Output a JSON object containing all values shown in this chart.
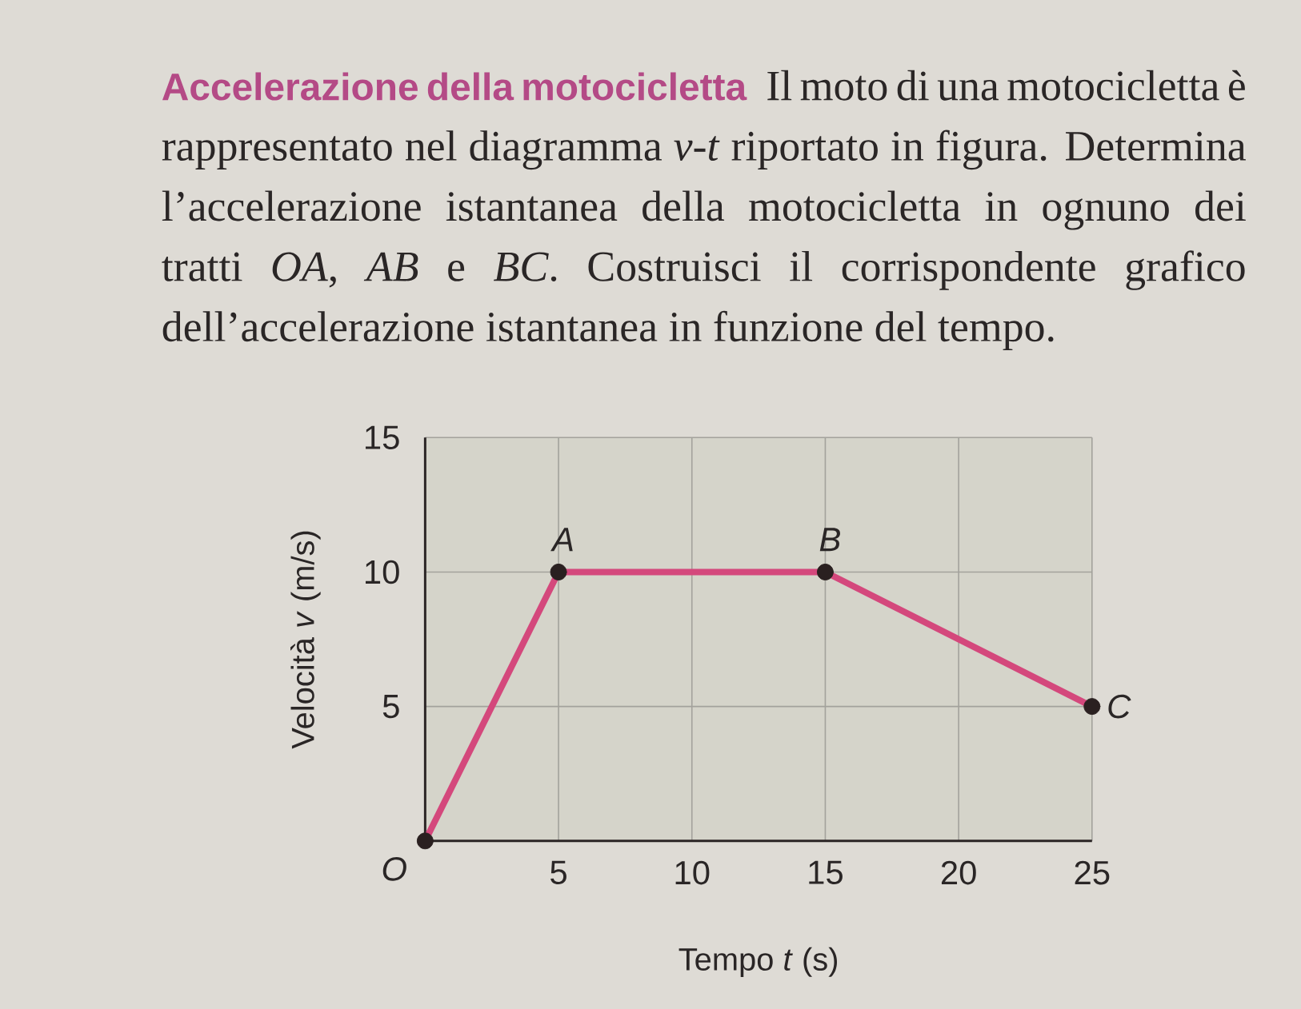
{
  "chart_data": {
    "type": "line",
    "title": "Accelerazione della motocicletta",
    "subtitle": "Il moto di una motocicletta è rappresentato nel diagramma *v*-*t* riportato in figura. Determina l’accelerazione istantanea della motocicletta in ognuno dei tratti *OA*, *AB* e *BC*. Costruisci il corrispondente grafico dell’accelerazione istantanea in funzione del tempo.",
    "xlabel": "Tempo *t* (s)",
    "ylabel": "Velocità *v* (m/s)",
    "x": [
      0,
      5,
      15,
      25
    ],
    "series": [
      {
        "color": "#d4487c",
        "values": [
          0,
          10,
          10,
          5
        ]
      }
    ],
    "xlim": [
      0,
      25
    ],
    "ylim": [
      0,
      15
    ],
    "xticks": [
      5,
      10,
      15,
      20,
      25
    ],
    "yticks": [
      5,
      10,
      15
    ],
    "grid": true,
    "marker": "circle",
    "line_style": "solid",
    "annotations": [
      {
        "text": "O",
        "x": 0,
        "y": 0
      },
      {
        "text": "A",
        "x": 5,
        "y": 10
      },
      {
        "text": "B",
        "x": 15,
        "y": 10
      },
      {
        "text": "C",
        "x": 25,
        "y": 5
      }
    ]
  }
}
